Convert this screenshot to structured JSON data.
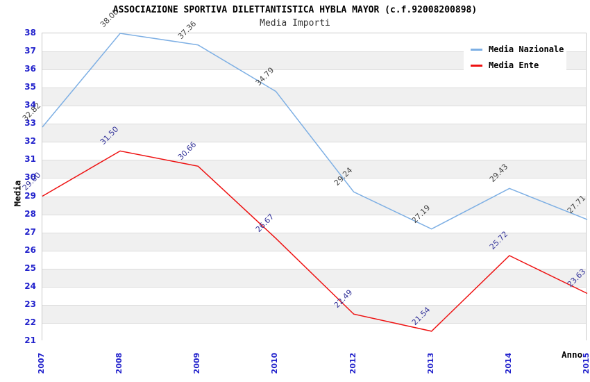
{
  "header": {
    "title": "ASSOCIAZIONE SPORTIVA DILETTANTISTICA HYBLA MAYOR (c.f.92008200898)",
    "subtitle": "Media Importi"
  },
  "chart_data": {
    "type": "line",
    "title": "ASSOCIAZIONE SPORTIVA DILETTANTISTICA HYBLA MAYOR (c.f.92008200898)",
    "subtitle": "Media Importi",
    "xlabel": "Anno",
    "ylabel": "Media",
    "x": [
      "2007",
      "2008",
      "2009",
      "2010",
      "2012",
      "2013",
      "2014",
      "2015"
    ],
    "series": [
      {
        "name": "Media Nazionale",
        "color": "#7dafe4",
        "label_color": "#444444",
        "values": [
          32.82,
          38.0,
          37.36,
          34.79,
          29.24,
          27.19,
          29.43,
          27.71
        ]
      },
      {
        "name": "Media Ente",
        "color": "#ee1111",
        "label_color": "#333399",
        "values": [
          29.0,
          31.5,
          30.66,
          26.67,
          22.49,
          21.54,
          25.72,
          23.63
        ]
      }
    ],
    "ylim": [
      21,
      38
    ],
    "ytick_step": 1,
    "value_labels_decimals": 2,
    "grid": "horizontal-alternating-bands",
    "legend_position": "top-right",
    "colors": {
      "tick_label": "#2222cc",
      "band_gray": "#f0f0f0",
      "band_white": "#ffffff",
      "grid_line": "#dcdcdc",
      "plot_border": "#c9c9c9"
    }
  },
  "legend": {
    "items": [
      {
        "label": "Media Nazionale"
      },
      {
        "label": "Media Ente"
      }
    ]
  }
}
